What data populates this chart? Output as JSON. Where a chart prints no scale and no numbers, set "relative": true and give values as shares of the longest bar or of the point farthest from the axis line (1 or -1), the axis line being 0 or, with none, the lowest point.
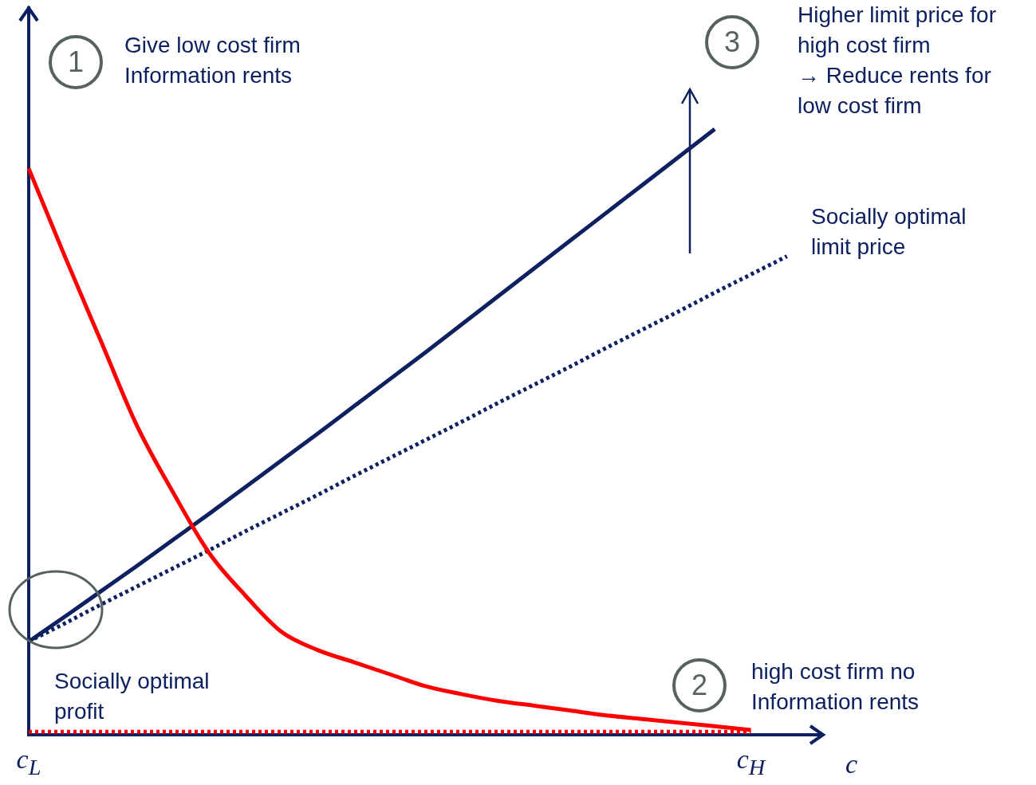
{
  "chart_data": {
    "type": "line",
    "relative": true,
    "xlabel": "c",
    "tick_labels": "x",
    "grid": false,
    "legend": false,
    "marker": "none",
    "categories": [
      "c$_{L}$",
      null,
      null,
      null,
      null,
      null,
      null,
      null,
      null,
      null,
      null,
      null,
      null,
      null,
      null,
      null,
      null,
      null,
      null,
      null,
      "c$_{H}$",
      null,
      null
    ],
    "series": [
      {
        "color": "#ff0000",
        "line_style": "solid",
        "values": [
          0.935,
          0.79,
          0.65,
          0.51,
          0.4,
          0.3,
          0.23,
          0.17,
          0.14,
          0.12,
          0.1,
          0.08,
          0.067,
          0.056,
          0.048,
          0.04,
          0.032,
          0.026,
          0.02,
          0.014,
          0.008,
          null,
          null
        ]
      },
      {
        "color": "#0d2060",
        "line_style": "solid",
        "values": [
          0.154,
          0.195,
          0.237,
          0.279,
          0.322,
          0.365,
          0.409,
          0.453,
          0.497,
          0.542,
          0.587,
          0.632,
          0.678,
          0.724,
          0.77,
          0.816,
          0.862,
          0.908,
          0.954,
          1.0,
          null,
          null,
          null
        ]
      },
      {
        "name": "Socially optimal limit price",
        "color": "#0d2060",
        "line_style": "dotted",
        "values": [
          0.154,
          0.184,
          0.215,
          0.245,
          0.275,
          0.305,
          0.336,
          0.366,
          0.396,
          0.427,
          0.457,
          0.487,
          0.517,
          0.548,
          0.578,
          0.608,
          0.639,
          0.669,
          0.699,
          0.73,
          0.76,
          0.79,
          null
        ]
      },
      {
        "name": "Socially optimal profit",
        "color": "#ff0000",
        "line_style": "dotted",
        "values": [
          0.005,
          0.005,
          0.005,
          0.005,
          0.005,
          0.005,
          0.005,
          0.005,
          0.005,
          0.005,
          0.005,
          0.005,
          0.005,
          0.005,
          0.005,
          0.005,
          0.005,
          0.005,
          0.005,
          0.005,
          0.005,
          null,
          null
        ]
      }
    ],
    "annotations": [
      "1",
      "Give low cost firm\nInformation rents",
      "3",
      "Higher limit price for\nhigh cost firm\n→ Reduce rents for\nlow cost firm",
      "2",
      "high cost firm no\nInformation rents"
    ]
  }
}
